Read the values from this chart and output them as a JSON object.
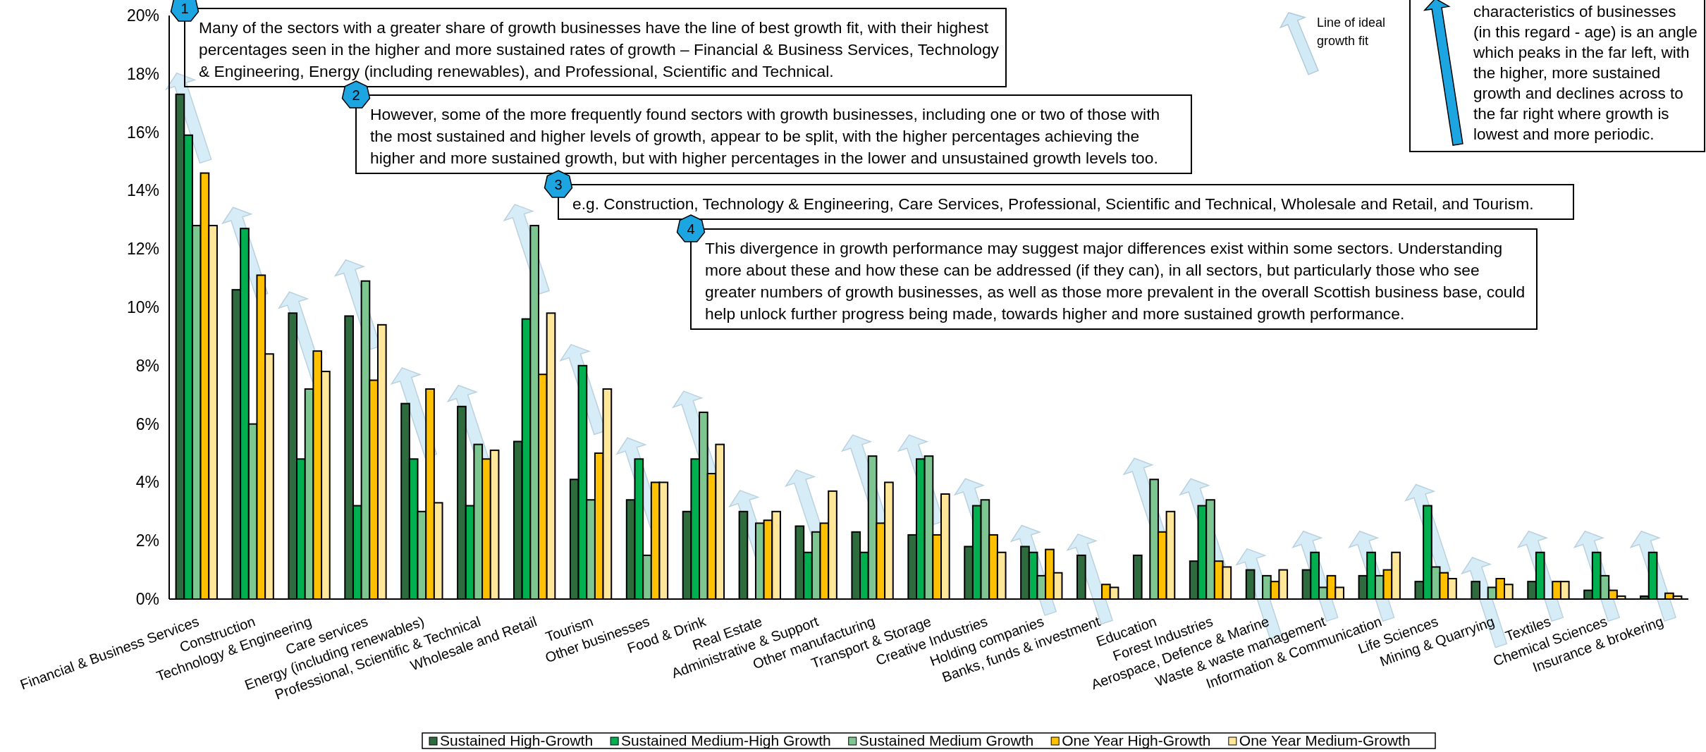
{
  "chart_data": {
    "type": "bar",
    "categories": [
      "Financial & Business Services",
      "Construction",
      "Technology & Engineering",
      "Care services",
      "Energy (including renewables)",
      "Professional, Scientific & Technical",
      "Wholesale and Retail",
      "Tourism",
      "Other businesses",
      "Food & Drink",
      "Real Estate",
      "Administrative & Support",
      "Other manufacturing",
      "Transport & Storage",
      "Creative Industries",
      "Holding companies",
      "Banks, funds & investment",
      "Education",
      "Forest Industries",
      "Aerospace, Defence & Marine",
      "Waste & waste management",
      "Information & Communication",
      "Life Sciences",
      "Mining & Quarrying",
      "Textiles",
      "Chemical Sciences",
      "Insurance & brokering"
    ],
    "series": [
      {
        "name": "Sustained High-Growth",
        "color": "#2e6b3f",
        "values": [
          17.3,
          10.6,
          9.8,
          9.7,
          6.7,
          6.6,
          5.4,
          4.1,
          3.4,
          3.0,
          3.0,
          2.5,
          2.3,
          2.2,
          1.8,
          1.8,
          1.5,
          1.5,
          1.3,
          1.0,
          1.0,
          0.8,
          0.6,
          0.6,
          0.6,
          0.3,
          0.1
        ]
      },
      {
        "name": "Sustained Medium-High Growth",
        "color": "#00b050",
        "values": [
          15.9,
          12.7,
          4.8,
          3.2,
          4.8,
          3.2,
          9.6,
          8.0,
          4.8,
          4.8,
          null,
          1.6,
          1.6,
          4.8,
          3.2,
          1.6,
          null,
          null,
          3.2,
          null,
          1.6,
          1.6,
          3.2,
          null,
          1.6,
          1.6,
          1.6
        ]
      },
      {
        "name": "Sustained Medium Growth",
        "color": "#7dc591",
        "values": [
          12.8,
          6.0,
          7.2,
          10.9,
          3.0,
          5.3,
          12.8,
          3.4,
          1.5,
          6.4,
          2.6,
          2.3,
          4.9,
          4.9,
          3.4,
          0.8,
          null,
          4.1,
          3.4,
          0.8,
          0.4,
          0.8,
          1.1,
          0.4,
          null,
          0.8,
          null
        ]
      },
      {
        "name": "One Year High-Growth",
        "color": "#ffc000",
        "values": [
          14.6,
          11.1,
          8.5,
          7.5,
          7.2,
          4.8,
          7.7,
          5.0,
          4.0,
          4.3,
          2.7,
          2.6,
          2.6,
          2.2,
          2.2,
          1.7,
          0.5,
          2.3,
          1.3,
          0.6,
          0.8,
          1.0,
          0.9,
          0.7,
          0.6,
          0.3,
          0.2
        ]
      },
      {
        "name": "One Year Medium-Growth",
        "color": "#ffe699",
        "values": [
          12.8,
          8.4,
          7.8,
          9.4,
          3.3,
          5.1,
          9.8,
          7.2,
          4.0,
          5.3,
          3.0,
          3.7,
          4.0,
          3.6,
          1.6,
          0.9,
          0.4,
          3.0,
          1.1,
          1.0,
          0.4,
          1.6,
          0.7,
          0.5,
          0.6,
          0.1,
          0.1
        ]
      }
    ],
    "ylim": [
      0,
      20
    ],
    "yticks": [
      {
        "value": 0,
        "label": "0%"
      },
      {
        "value": 2,
        "label": "2%"
      },
      {
        "value": 4,
        "label": "4%"
      },
      {
        "value": 6,
        "label": "6%"
      },
      {
        "value": 8,
        "label": "8%"
      },
      {
        "value": 10,
        "label": "10%"
      },
      {
        "value": 12,
        "label": "12%"
      },
      {
        "value": 14,
        "label": "14%"
      },
      {
        "value": 16,
        "label": "16%"
      },
      {
        "value": 18,
        "label": "18%"
      },
      {
        "value": 20,
        "label": "20%"
      }
    ],
    "grid": false,
    "legend": "bottom",
    "annotations": [
      "1",
      "Many of the sectors with a greater share of growth businesses have the line of best growth fit, with their highest percentages seen in the higher and more sustained rates of growth – Financial & Business Services, Technology & Engineering, Energy (including renewables), and Professional, Scientific and Technical.",
      "2",
      "However, some of the more frequently found sectors with growth businesses, including one or two of those with the most sustained and higher levels of growth, appear to be split, with the higher percentages achieving the higher and more sustained growth, but with higher percentages in the lower and unsustained growth levels too.",
      "3",
      "e.g. Construction, Technology & Engineering, Care Services, Professional, Scientific and Technical, Wholesale and Retail, and Tourism.",
      "4",
      "This divergence in growth performance may suggest major differences exist within some sectors. Understanding more about these and how these can be addressed (if they can), in all sectors, but particularly those who see greater numbers of growth businesses, as well as those more prevalent in the overall Scottish business base, could help unlock further progress being made, towards higher and more sustained growth performance.",
      "Line of ideal growth fit",
      "characteristics of businesses (in this regard - age) is an angle which peaks in the far left, with the higher, more sustained growth and declines across to the far right where growth is lowest and more periodic."
    ]
  }
}
